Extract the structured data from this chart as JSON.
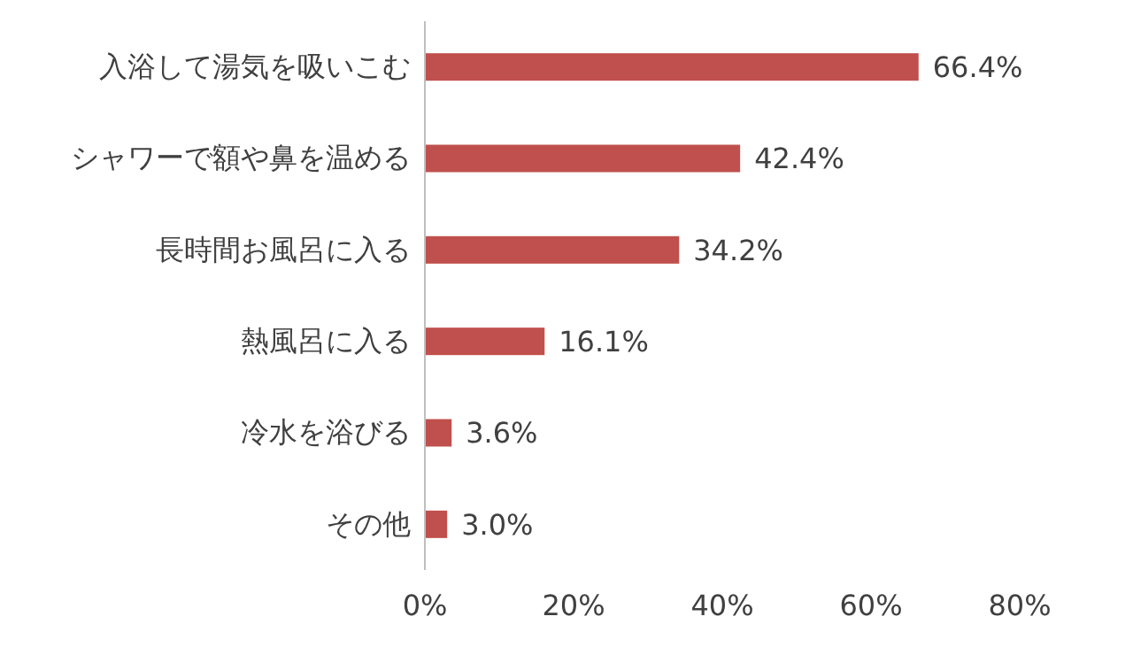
{
  "chart_data": {
    "type": "bar",
    "orientation": "horizontal",
    "categories": [
      "入浴して湯気を吸いこむ",
      "シャワーで額や鼻を温める",
      "長時間お風呂に入る",
      "熱風呂に入る",
      "冷水を浴びる",
      "その他"
    ],
    "values": [
      66.4,
      42.4,
      34.2,
      16.1,
      3.6,
      3.0
    ],
    "value_labels": [
      "66.4%",
      "42.4%",
      "34.2%",
      "16.1%",
      "3.6%",
      "3.0%"
    ],
    "color": "#c0504d",
    "xlim": [
      0,
      80
    ],
    "xticks": [
      {
        "value": 0,
        "label": "0%"
      },
      {
        "value": 20,
        "label": "20%"
      },
      {
        "value": 40,
        "label": "40%"
      },
      {
        "value": 60,
        "label": "60%"
      },
      {
        "value": 80,
        "label": "80%"
      }
    ],
    "grid": false
  }
}
